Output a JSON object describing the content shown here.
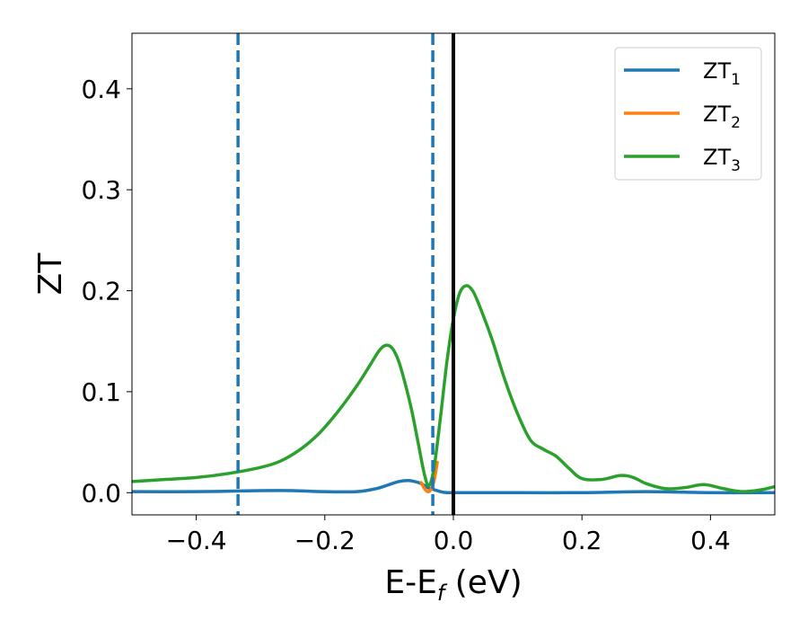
{
  "chart_data": {
    "type": "line",
    "title": "",
    "xlabel": {
      "main": "E-E",
      "sub": "f",
      "suffix": " (eV)"
    },
    "ylabel": "ZT",
    "xlim": [
      -0.5,
      0.5
    ],
    "ylim": [
      -0.022,
      0.455
    ],
    "xticks": [
      -0.4,
      -0.2,
      0.0,
      0.2,
      0.4
    ],
    "xtick_labels": [
      "−0.4",
      "−0.2",
      "0.0",
      "0.2",
      "0.4"
    ],
    "yticks": [
      0.0,
      0.1,
      0.2,
      0.3,
      0.4
    ],
    "ytick_labels": [
      "0.0",
      "0.1",
      "0.2",
      "0.3",
      "0.4"
    ],
    "grid": false,
    "legend_position": "top-right",
    "vlines": [
      {
        "x": -0.335,
        "style": "dashed",
        "color": "#1f77b4"
      },
      {
        "x": -0.032,
        "style": "dashed",
        "color": "#1f77b4"
      },
      {
        "x": 0.0,
        "style": "solid",
        "color": "#000000"
      }
    ],
    "series": [
      {
        "name": {
          "main": "ZT",
          "sub": "1"
        },
        "color": "#1f77b4",
        "x": [
          -0.5,
          -0.4,
          -0.3,
          -0.25,
          -0.2,
          -0.15,
          -0.12,
          -0.1,
          -0.085,
          -0.07,
          -0.06,
          -0.05,
          -0.04,
          -0.03,
          -0.02,
          -0.01,
          0.0,
          0.1,
          0.2,
          0.3,
          0.4,
          0.5
        ],
        "y": [
          0.001,
          0.001,
          0.002,
          0.002,
          0.001,
          0.001,
          0.004,
          0.008,
          0.011,
          0.012,
          0.011,
          0.009,
          0.005,
          0.003,
          0.001,
          0.0,
          0.0,
          0.0,
          0.0,
          0.001,
          0.0,
          0.0
        ]
      },
      {
        "name": {
          "main": "ZT",
          "sub": "2"
        },
        "color": "#ff7f0e",
        "x": [
          -0.05,
          -0.045,
          -0.04,
          -0.035,
          -0.03,
          -0.025
        ],
        "y": [
          0.01,
          0.004,
          0.001,
          0.003,
          0.012,
          0.03
        ]
      },
      {
        "name": {
          "main": "ZT",
          "sub": "3"
        },
        "color": "#2ca02c",
        "x": [
          -0.5,
          -0.45,
          -0.4,
          -0.35,
          -0.3,
          -0.27,
          -0.24,
          -0.21,
          -0.18,
          -0.15,
          -0.13,
          -0.115,
          -0.105,
          -0.095,
          -0.085,
          -0.075,
          -0.065,
          -0.055,
          -0.045,
          -0.038,
          -0.03,
          -0.02,
          -0.01,
          0.0,
          0.01,
          0.02,
          0.03,
          0.04,
          0.06,
          0.08,
          0.1,
          0.12,
          0.14,
          0.16,
          0.18,
          0.2,
          0.23,
          0.26,
          0.28,
          0.3,
          0.33,
          0.36,
          0.39,
          0.42,
          0.45,
          0.48,
          0.5
        ],
        "y": [
          0.011,
          0.013,
          0.015,
          0.019,
          0.025,
          0.031,
          0.042,
          0.058,
          0.08,
          0.106,
          0.126,
          0.141,
          0.146,
          0.143,
          0.13,
          0.108,
          0.082,
          0.05,
          0.018,
          0.007,
          0.025,
          0.075,
          0.13,
          0.172,
          0.198,
          0.205,
          0.2,
          0.186,
          0.152,
          0.112,
          0.078,
          0.052,
          0.043,
          0.036,
          0.024,
          0.014,
          0.013,
          0.017,
          0.015,
          0.009,
          0.004,
          0.005,
          0.008,
          0.004,
          0.001,
          0.003,
          0.006
        ]
      }
    ]
  }
}
